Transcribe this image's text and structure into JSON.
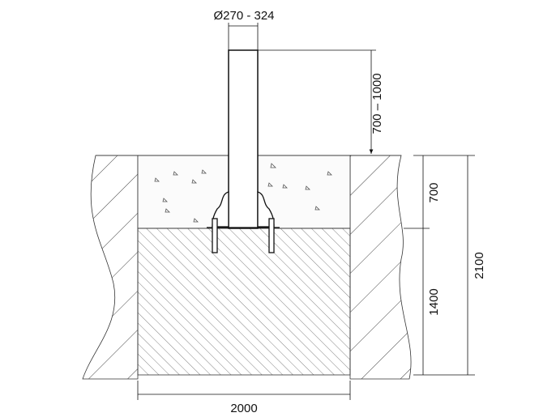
{
  "dimensions": {
    "diameter": "Ø270 - 324",
    "post_height": "700 – 1000",
    "concrete_depth": "700",
    "foundation_depth": "1400",
    "total_depth": "2100",
    "width": "2000"
  },
  "colors": {
    "line": "#111111",
    "hatch": "#555555",
    "background": "#ffffff"
  }
}
